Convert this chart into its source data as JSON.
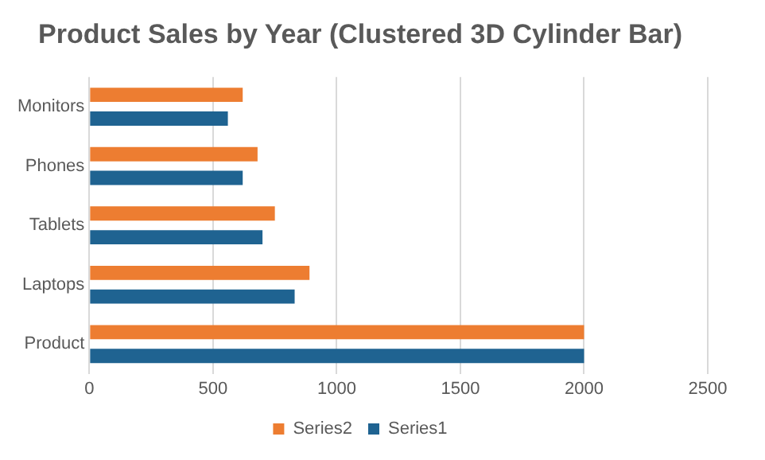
{
  "chart_data": {
    "type": "bar",
    "orientation": "horizontal",
    "title": "Product Sales by Year (Clustered 3D Cylinder Bar)",
    "categories": [
      "Monitors",
      "Phones",
      "Tablets",
      "Laptops",
      "Product"
    ],
    "series": [
      {
        "name": "Series2",
        "color": "#ed7d31",
        "values": [
          620,
          680,
          750,
          890,
          2000
        ]
      },
      {
        "name": "Series1",
        "color": "#1f6391",
        "values": [
          560,
          620,
          700,
          830,
          2000
        ]
      }
    ],
    "xlim": [
      0,
      2500
    ],
    "xticks": [
      0,
      500,
      1000,
      1500,
      2000,
      2500
    ],
    "grid": "x",
    "legend": "bottom"
  }
}
